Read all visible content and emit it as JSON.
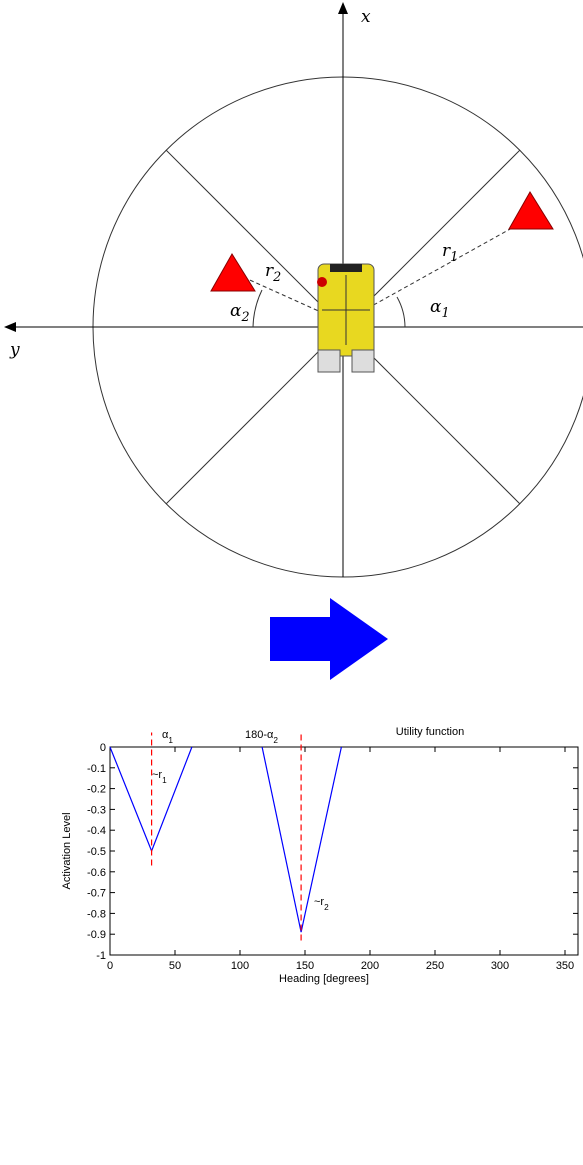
{
  "diagram": {
    "x_axis": "x",
    "y_axis": "y",
    "r1": {
      "base": "r",
      "sub": "1"
    },
    "r2": {
      "base": "r",
      "sub": "2"
    },
    "a1": {
      "base": "α",
      "sub": "1"
    },
    "a2": {
      "base": "α",
      "sub": "2"
    }
  },
  "chart_data": {
    "type": "line",
    "title": "Utility function",
    "xlabel": "Heading [degrees]",
    "ylabel": "Activation Level",
    "series": [
      {
        "color": "#0000ff",
        "x": [
          0,
          32,
          63
        ],
        "values": [
          0,
          -0.5,
          0
        ]
      },
      {
        "color": "#0000ff",
        "x": [
          117,
          147,
          178
        ],
        "values": [
          0,
          -0.89,
          0
        ]
      }
    ],
    "markers": [
      {
        "color": "#ff0000",
        "x": 32,
        "ymin": -0.57,
        "ymax": 0.07
      },
      {
        "color": "#ff0000",
        "x": 147,
        "ymin": -0.93,
        "ymax": 0.07
      }
    ],
    "annotations": [
      {
        "base": "α",
        "sub": "1"
      },
      {
        "base": "180-α",
        "sub": "2"
      },
      {
        "base": "~r",
        "sub": "1"
      },
      {
        "base": "~r",
        "sub": "2"
      }
    ],
    "xlim": [
      0,
      360
    ],
    "ylim": [
      -1,
      0
    ],
    "xticks": [
      0,
      50,
      100,
      150,
      200,
      250,
      300,
      350
    ],
    "yticks": [
      0,
      -0.1,
      -0.2,
      -0.3,
      -0.4,
      -0.5,
      -0.6,
      -0.7,
      -0.8,
      -0.9,
      -1
    ]
  }
}
